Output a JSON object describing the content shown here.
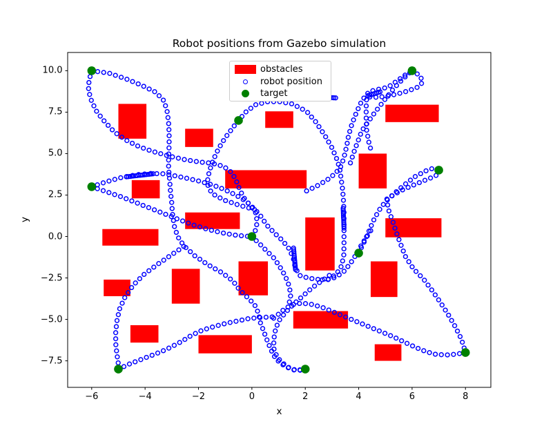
{
  "title": "Robot positions from Gazebo simulation",
  "colors": {
    "obstacle": "#ff0000",
    "robot": "#0000ff",
    "target": "#008000",
    "spine": "#000000",
    "legend_border": "#cccccc",
    "background": "#ffffff"
  },
  "legend": {
    "entries": [
      {
        "label": "obstacles",
        "marker": "rect",
        "color": "#ff0000"
      },
      {
        "label": "robot position",
        "marker": "open-circle",
        "color": "#0000ff"
      },
      {
        "label": "target",
        "marker": "filled-circle",
        "color": "#008000"
      }
    ]
  },
  "chart_data": {
    "type": "scatter",
    "title": "Robot positions from Gazebo simulation",
    "xlabel": "x",
    "ylabel": "y",
    "xlim": [
      -6.9,
      8.95
    ],
    "ylim": [
      -9.1,
      11.1
    ],
    "grid": false,
    "legend_position": "upper center",
    "xticks": [
      -6,
      -4,
      -2,
      0,
      2,
      4,
      6,
      8
    ],
    "xtick_labels": [
      "−6",
      "−4",
      "−2",
      "0",
      "2",
      "4",
      "6",
      "8"
    ],
    "yticks": [
      10.0,
      7.5,
      5.0,
      2.5,
      0.0,
      -2.5,
      -5.0,
      -7.5
    ],
    "ytick_labels": [
      "10.0",
      "7.5",
      "5.0",
      "2.5",
      "0.0",
      "−2.5",
      "−5.0",
      "−7.5"
    ],
    "obstacles": [
      [
        -5.0,
        5.9,
        1.05,
        2.1
      ],
      [
        -2.5,
        5.4,
        1.05,
        1.1
      ],
      [
        0.5,
        6.55,
        1.05,
        1.0
      ],
      [
        5.0,
        6.9,
        2.0,
        1.05
      ],
      [
        4.0,
        2.9,
        1.05,
        2.1
      ],
      [
        -4.5,
        2.3,
        1.05,
        1.1
      ],
      [
        -1.0,
        2.9,
        3.05,
        1.1
      ],
      [
        -2.5,
        0.45,
        2.05,
        1.0
      ],
      [
        -5.6,
        -0.55,
        2.1,
        1.0
      ],
      [
        2.0,
        -2.05,
        1.1,
        3.2
      ],
      [
        5.0,
        -0.05,
        2.1,
        1.15
      ],
      [
        -5.55,
        -3.6,
        1.0,
        1.0
      ],
      [
        -3.0,
        -4.05,
        1.05,
        2.1
      ],
      [
        -0.5,
        -3.55,
        1.1,
        2.05
      ],
      [
        4.45,
        -3.65,
        1.0,
        2.15
      ],
      [
        -4.55,
        -6.4,
        1.05,
        1.05
      ],
      [
        -2.0,
        -7.05,
        2.0,
        1.1
      ],
      [
        1.55,
        -5.55,
        2.05,
        1.05
      ],
      [
        4.6,
        -7.5,
        1.0,
        1.0
      ]
    ],
    "targets": [
      [
        -6,
        10
      ],
      [
        6,
        10
      ],
      [
        -0.5,
        7
      ],
      [
        -6,
        3
      ],
      [
        7,
        4
      ],
      [
        0,
        0
      ],
      [
        4,
        -1
      ],
      [
        -5,
        -8
      ],
      [
        2,
        -8
      ],
      [
        8,
        -7
      ]
    ],
    "robot_path_segments": [
      [
        [
          -6,
          10
        ],
        [
          -5.35,
          9.85
        ],
        [
          -4.7,
          9.5
        ],
        [
          -4.1,
          9.1
        ],
        [
          -3.6,
          8.7
        ],
        [
          -3.3,
          8.2
        ],
        [
          -3.18,
          7.6
        ],
        [
          -3.12,
          6.9
        ],
        [
          -3.1,
          6.2
        ],
        [
          -3.1,
          5.5
        ],
        [
          -3.12,
          4.8
        ],
        [
          -3.12,
          4.1
        ],
        [
          -3.08,
          3.4
        ],
        [
          -3.05,
          2.7
        ],
        [
          -3.0,
          2.0
        ],
        [
          -2.97,
          1.3
        ],
        [
          -2.9,
          0.6
        ],
        [
          -2.78,
          0.0
        ],
        [
          -2.55,
          -0.55
        ],
        [
          -2.15,
          -1.15
        ],
        [
          -1.65,
          -1.7
        ],
        [
          -1.1,
          -2.2
        ],
        [
          -0.7,
          -2.7
        ],
        [
          -0.45,
          -3.25
        ],
        [
          -0.15,
          -3.7
        ],
        [
          0.1,
          -4.1
        ],
        [
          0.25,
          -4.65
        ],
        [
          0.32,
          -5.2
        ],
        [
          0.45,
          -5.75
        ],
        [
          0.58,
          -6.3
        ],
        [
          0.72,
          -6.85
        ],
        [
          0.9,
          -7.4
        ],
        [
          1.25,
          -7.85
        ],
        [
          1.62,
          -8.08
        ],
        [
          2,
          -8
        ]
      ],
      [
        [
          -6,
          10
        ],
        [
          -6.1,
          9.4
        ],
        [
          -6.12,
          8.8
        ],
        [
          -6.0,
          8.15
        ],
        [
          -5.8,
          7.5
        ],
        [
          -5.5,
          6.9
        ],
        [
          -5.15,
          6.3
        ],
        [
          -4.7,
          5.8
        ],
        [
          -4.2,
          5.4
        ],
        [
          -3.65,
          5.1
        ],
        [
          -3.1,
          4.85
        ],
        [
          -2.55,
          4.65
        ],
        [
          -2.0,
          4.5
        ],
        [
          -1.5,
          4.42
        ],
        [
          -1.05,
          4.22
        ],
        [
          -0.75,
          3.85
        ],
        [
          -0.58,
          3.35
        ],
        [
          -0.45,
          2.8
        ],
        [
          -0.28,
          2.3
        ],
        [
          -0.05,
          1.85
        ],
        [
          0.15,
          1.4
        ],
        [
          0.2,
          0.85
        ],
        [
          0.12,
          0.3
        ],
        [
          0,
          0
        ]
      ],
      [
        [
          -6,
          3
        ],
        [
          -5.45,
          3.3
        ],
        [
          -4.9,
          3.55
        ],
        [
          -4.35,
          3.72
        ],
        [
          -3.8,
          3.8
        ],
        [
          -3.3,
          3.78
        ],
        [
          -2.85,
          3.65
        ],
        [
          -2.4,
          3.5
        ],
        [
          -1.95,
          3.33
        ],
        [
          -1.5,
          3.12
        ],
        [
          -1.05,
          2.85
        ],
        [
          -0.6,
          2.5
        ],
        [
          -0.2,
          2.1
        ],
        [
          0.1,
          1.65
        ],
        [
          0.35,
          1.2
        ],
        [
          0.55,
          0.7
        ],
        [
          0.85,
          0.2
        ],
        [
          1.15,
          -0.25
        ],
        [
          1.4,
          -0.75
        ],
        [
          1.55,
          -1.3
        ],
        [
          1.62,
          -1.85
        ],
        [
          1.78,
          -2.35
        ],
        [
          2.15,
          -2.52
        ],
        [
          2.55,
          -2.6
        ]
      ],
      [
        [
          -6,
          3
        ],
        [
          -5.45,
          2.7
        ],
        [
          -4.9,
          2.4
        ],
        [
          -4.35,
          2.05
        ],
        [
          -3.8,
          1.7
        ],
        [
          -3.25,
          1.35
        ],
        [
          -2.7,
          1.0
        ],
        [
          -2.2,
          0.7
        ],
        [
          -1.7,
          0.45
        ],
        [
          -1.2,
          0.25
        ],
        [
          -0.7,
          0.1
        ],
        [
          -0.25,
          0.02
        ],
        [
          0,
          0
        ]
      ],
      [
        [
          0.1,
          1.62
        ],
        [
          -0.5,
          1.9
        ],
        [
          -1.05,
          2.2
        ],
        [
          -1.5,
          2.6
        ],
        [
          -1.68,
          3.2
        ],
        [
          -1.6,
          3.9
        ],
        [
          -1.45,
          4.6
        ],
        [
          -1.25,
          5.3
        ],
        [
          -1.0,
          5.95
        ],
        [
          -0.72,
          6.55
        ],
        [
          -0.5,
          7.0
        ],
        [
          -0.2,
          7.55
        ],
        [
          0.15,
          7.95
        ],
        [
          0.6,
          8.13
        ],
        [
          1.05,
          8.13
        ],
        [
          1.5,
          8.0
        ],
        [
          2.05,
          7.55
        ],
        [
          2.4,
          6.9
        ],
        [
          2.75,
          6.05
        ],
        [
          3.0,
          5.35
        ],
        [
          3.2,
          4.6
        ],
        [
          3.3,
          4.0
        ],
        [
          3.35,
          3.4
        ],
        [
          3.4,
          2.8
        ],
        [
          3.43,
          2.2
        ],
        [
          3.45,
          1.5
        ],
        [
          3.45,
          0.8
        ],
        [
          3.45,
          0.1
        ],
        [
          3.45,
          -0.6
        ],
        [
          3.44,
          -1.2
        ],
        [
          3.35,
          -1.8
        ],
        [
          3.15,
          -2.3
        ],
        [
          2.85,
          -2.58
        ],
        [
          2.55,
          -2.62
        ]
      ],
      [
        [
          2.05,
          2.75
        ],
        [
          2.5,
          3.1
        ],
        [
          2.95,
          3.55
        ],
        [
          3.3,
          4.1
        ],
        [
          3.45,
          4.75
        ],
        [
          3.55,
          5.45
        ],
        [
          3.62,
          6.1
        ],
        [
          3.75,
          6.8
        ],
        [
          3.92,
          7.5
        ],
        [
          4.12,
          8.2
        ],
        [
          4.4,
          8.75
        ],
        [
          4.8,
          8.9
        ],
        [
          5.1,
          9.0
        ],
        [
          5.45,
          9.4
        ],
        [
          5.75,
          9.75
        ],
        [
          6,
          10
        ]
      ],
      [
        [
          6,
          10
        ],
        [
          6.3,
          9.7
        ],
        [
          6.4,
          9.3
        ],
        [
          6.2,
          9.0
        ],
        [
          5.85,
          8.78
        ],
        [
          5.45,
          8.6
        ],
        [
          5.05,
          8.45
        ],
        [
          4.65,
          8.4
        ],
        [
          4.3,
          8.42
        ],
        [
          4.28,
          7.8
        ],
        [
          4.28,
          7.1
        ],
        [
          4.3,
          6.4
        ],
        [
          4.38,
          5.7
        ],
        [
          4.48,
          5.1
        ]
      ],
      [
        [
          3.69,
          4.44
        ],
        [
          3.86,
          5.27
        ],
        [
          4.12,
          6.38
        ],
        [
          4.55,
          7.36
        ],
        [
          4.95,
          8.2
        ],
        [
          5.3,
          8.9
        ],
        [
          5.65,
          9.5
        ],
        [
          6,
          10
        ]
      ],
      [
        [
          4,
          -1
        ],
        [
          4.2,
          -0.35
        ],
        [
          4.38,
          0.3
        ],
        [
          4.55,
          0.95
        ],
        [
          4.75,
          1.55
        ],
        [
          5.0,
          2.1
        ],
        [
          5.35,
          2.62
        ],
        [
          5.7,
          3.1
        ],
        [
          6.1,
          3.6
        ],
        [
          6.5,
          3.95
        ],
        [
          6.85,
          4.15
        ],
        [
          7,
          4
        ]
      ],
      [
        [
          7,
          4
        ],
        [
          6.92,
          3.7
        ],
        [
          6.65,
          3.5
        ],
        [
          6.3,
          3.27
        ],
        [
          5.95,
          3.03
        ],
        [
          5.6,
          2.78
        ],
        [
          5.3,
          2.5
        ],
        [
          5.05,
          2.25
        ],
        [
          5.12,
          1.6
        ],
        [
          5.28,
          0.9
        ],
        [
          5.42,
          0.2
        ],
        [
          5.58,
          -0.5
        ],
        [
          5.75,
          -1.2
        ],
        [
          6.05,
          -1.95
        ],
        [
          6.42,
          -2.55
        ],
        [
          6.75,
          -3.25
        ],
        [
          7.05,
          -3.95
        ],
        [
          7.35,
          -4.7
        ],
        [
          7.62,
          -5.45
        ],
        [
          7.85,
          -6.2
        ],
        [
          8,
          -7
        ]
      ],
      [
        [
          8,
          -7
        ],
        [
          7.65,
          -7.1
        ],
        [
          7.25,
          -7.15
        ],
        [
          6.85,
          -7.1
        ],
        [
          6.5,
          -6.93
        ],
        [
          6.15,
          -6.7
        ],
        [
          5.75,
          -6.4
        ],
        [
          5.3,
          -6.05
        ],
        [
          4.85,
          -5.75
        ],
        [
          4.4,
          -5.45
        ],
        [
          3.95,
          -5.15
        ],
        [
          3.5,
          -4.85
        ],
        [
          3.05,
          -4.55
        ],
        [
          2.6,
          -4.25
        ],
        [
          2.2,
          -4.08
        ],
        [
          1.85,
          -4.02
        ],
        [
          1.5,
          -4.12
        ],
        [
          1.2,
          -4.4
        ],
        [
          0.95,
          -4.75
        ],
        [
          0.72,
          -5.05
        ]
      ],
      [
        [
          -5,
          -8
        ],
        [
          -4.6,
          -7.7
        ],
        [
          -4.2,
          -7.45
        ],
        [
          -3.8,
          -7.2
        ],
        [
          -3.4,
          -6.95
        ],
        [
          -3.0,
          -6.65
        ],
        [
          -2.6,
          -6.3
        ],
        [
          -2.25,
          -5.95
        ],
        [
          -1.85,
          -5.65
        ],
        [
          -1.45,
          -5.45
        ],
        [
          -1.0,
          -5.25
        ],
        [
          -0.55,
          -5.1
        ],
        [
          -0.1,
          -4.95
        ],
        [
          0.35,
          -4.88
        ],
        [
          0.8,
          -4.85
        ]
      ],
      [
        [
          -2.55,
          -0.6
        ],
        [
          -3.05,
          -1.15
        ],
        [
          -3.55,
          -1.7
        ],
        [
          -4.05,
          -2.3
        ],
        [
          -4.45,
          -2.95
        ],
        [
          -4.75,
          -3.65
        ],
        [
          -4.95,
          -4.35
        ],
        [
          -5.05,
          -5.05
        ],
        [
          -5.1,
          -5.75
        ],
        [
          -5.1,
          -6.45
        ],
        [
          -5.05,
          -7.15
        ],
        [
          -5.0,
          -7.7
        ],
        [
          -5,
          -8
        ]
      ],
      [
        [
          4.45,
          0.35
        ],
        [
          4.25,
          -0.15
        ],
        [
          4.05,
          -0.65
        ],
        [
          3.9,
          -1.1
        ],
        [
          3.7,
          -1.6
        ],
        [
          3.45,
          -2.1
        ],
        [
          3.15,
          -2.45
        ],
        [
          2.85,
          -2.6
        ]
      ],
      [
        [
          0,
          0
        ],
        [
          0.3,
          -0.46
        ],
        [
          0.56,
          -0.88
        ],
        [
          0.82,
          -1.29
        ],
        [
          1.03,
          -1.78
        ],
        [
          1.21,
          -2.27
        ],
        [
          1.35,
          -2.75
        ],
        [
          1.42,
          -3.2
        ],
        [
          1.45,
          -3.6
        ],
        [
          1.4,
          -4.0
        ]
      ],
      [
        [
          2.9,
          -2.35
        ],
        [
          2.6,
          -2.7
        ],
        [
          2.25,
          -3.1
        ],
        [
          1.9,
          -3.6
        ],
        [
          1.55,
          -4.1
        ],
        [
          1.25,
          -4.6
        ],
        [
          1.0,
          -5.1
        ],
        [
          0.88,
          -5.65
        ],
        [
          0.82,
          -6.2
        ],
        [
          0.82,
          -6.75
        ],
        [
          0.95,
          -7.3
        ],
        [
          1.3,
          -7.85
        ],
        [
          1.7,
          -8.1
        ],
        [
          2,
          -8
        ]
      ]
    ],
    "robot_path_dense_segments": [
      [
        [
          -4.7,
          3.6
        ],
        [
          -3.65,
          3.79
        ]
      ],
      [
        [
          1.56,
          -0.7
        ],
        [
          1.64,
          -2.1
        ]
      ],
      [
        [
          3.42,
          1.7
        ],
        [
          3.45,
          0.5
        ]
      ],
      [
        [
          2.6,
          8.42
        ],
        [
          3.2,
          8.35
        ]
      ],
      [
        [
          4.35,
          8.5
        ],
        [
          4.85,
          8.75
        ]
      ]
    ]
  }
}
